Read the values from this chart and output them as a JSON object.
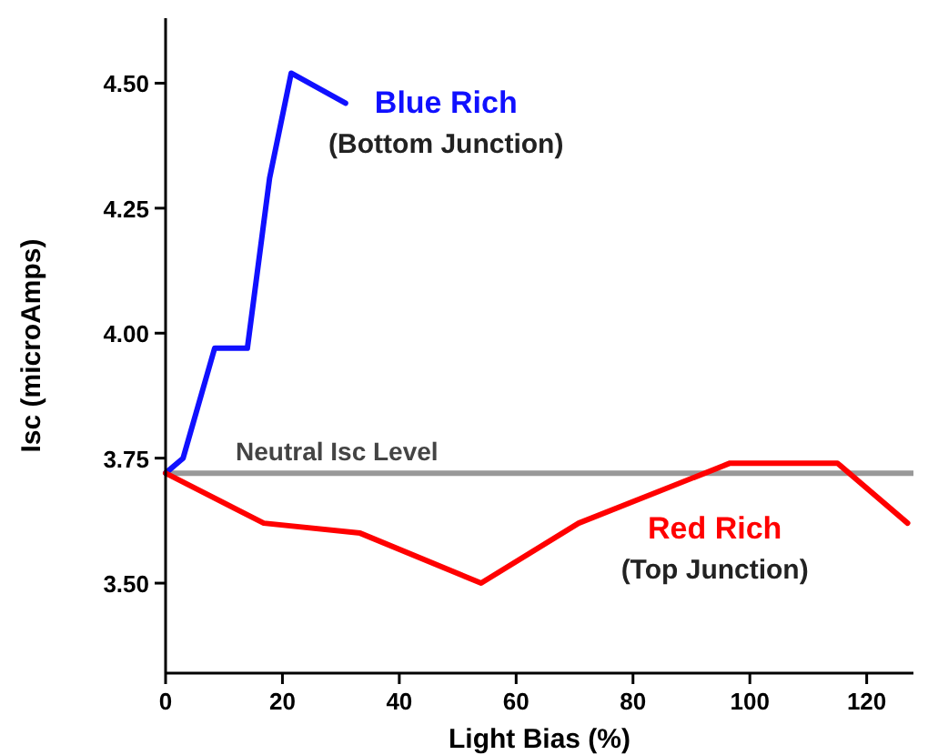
{
  "chart_data": {
    "type": "line",
    "xlabel": "Light Bias (%)",
    "ylabel": "Isc (microAmps)",
    "xlim": [
      0,
      128
    ],
    "ylim": [
      3.32,
      4.63
    ],
    "xticks": [
      0,
      20,
      40,
      60,
      80,
      100,
      120
    ],
    "yticks": [
      {
        "value": 3.5,
        "label": "3.50"
      },
      {
        "value": 3.75,
        "label": "3.75"
      },
      {
        "value": 4.0,
        "label": "4.00"
      },
      {
        "value": 4.25,
        "label": "4.25"
      },
      {
        "value": 4.5,
        "label": "4.50"
      }
    ],
    "grid": false,
    "line_style": "solid",
    "series": [
      {
        "name": "Blue Rich",
        "color": "#1010ff",
        "x": [
          0,
          3,
          8.4,
          14,
          17.8,
          21.5,
          30.8
        ],
        "values": [
          3.72,
          3.75,
          3.97,
          3.97,
          4.31,
          4.52,
          4.46
        ]
      },
      {
        "name": "Red Rich",
        "color": "#ff0000",
        "x": [
          0,
          16.8,
          33.3,
          54,
          70.7,
          96.6,
          115,
          127
        ],
        "values": [
          3.72,
          3.62,
          3.6,
          3.5,
          3.62,
          3.74,
          3.74,
          3.62
        ]
      }
    ],
    "ref_lines": [
      {
        "axis": "y",
        "value": 3.72,
        "label": "Neutral Isc Level",
        "color": "#999999"
      }
    ],
    "annotations": [
      "(Bottom Junction)",
      "(Top Junction)"
    ]
  }
}
